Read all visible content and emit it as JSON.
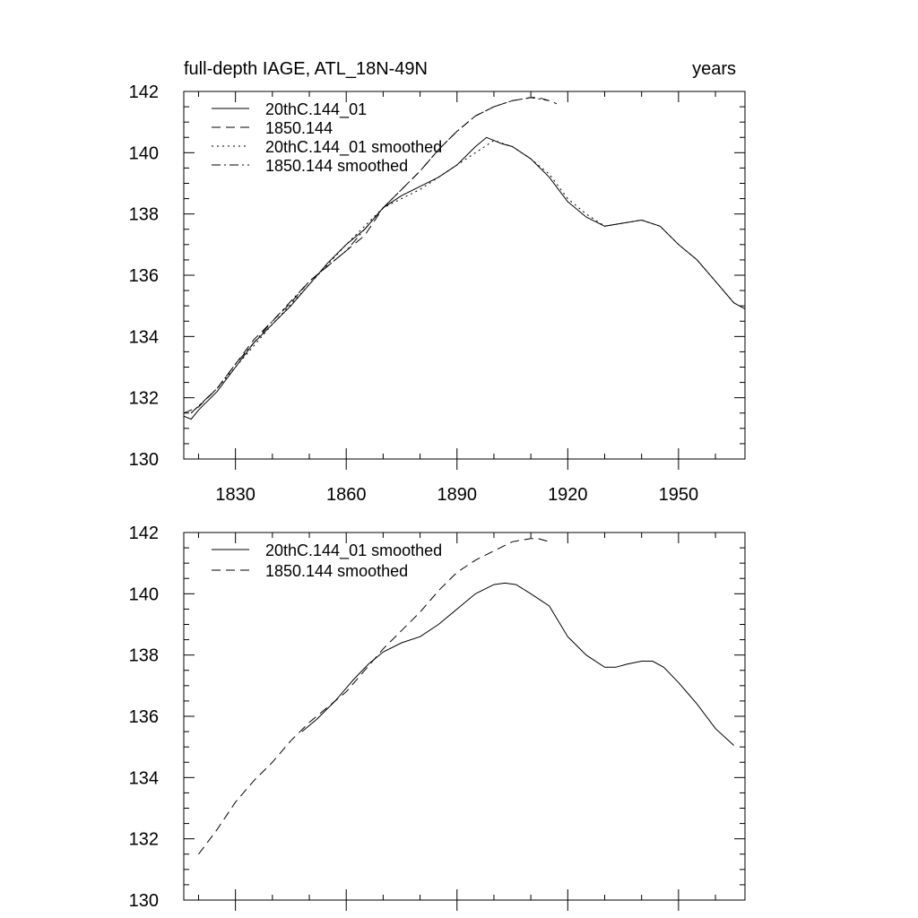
{
  "chart_data": [
    {
      "type": "line",
      "title": "full-depth IAGE, ATL_18N-49N",
      "units": "years",
      "xlim": [
        1816,
        1968
      ],
      "ylim": [
        130,
        142
      ],
      "x_ticks": [
        1830,
        1860,
        1890,
        1920,
        1950
      ],
      "y_ticks": [
        130,
        132,
        134,
        136,
        138,
        140,
        142
      ],
      "series": [
        {
          "name": "20thC.144_01",
          "dash": "solid",
          "x": [
            1816,
            1818,
            1820,
            1825,
            1830,
            1835,
            1840,
            1845,
            1850,
            1855,
            1860,
            1865,
            1870,
            1875,
            1880,
            1885,
            1890,
            1895,
            1898,
            1900,
            1902,
            1905,
            1910,
            1915,
            1920,
            1925,
            1930,
            1935,
            1940,
            1945,
            1950,
            1955,
            1960,
            1965,
            1968
          ],
          "y": [
            131.4,
            131.3,
            131.6,
            132.2,
            133.0,
            133.8,
            134.4,
            135.0,
            135.7,
            136.4,
            137.0,
            137.5,
            138.2,
            138.6,
            138.9,
            139.2,
            139.6,
            140.2,
            140.5,
            140.4,
            140.3,
            140.2,
            139.8,
            139.2,
            138.4,
            137.9,
            137.6,
            137.7,
            137.8,
            137.6,
            137.0,
            136.5,
            135.8,
            135.1,
            134.9
          ]
        },
        {
          "name": "1850.144",
          "dash": "long",
          "x": [
            1816,
            1820,
            1825,
            1830,
            1835,
            1840,
            1845,
            1850,
            1855,
            1860,
            1865,
            1870,
            1875,
            1880,
            1885,
            1890,
            1895,
            1900,
            1905,
            1910,
            1912,
            1915,
            1917
          ],
          "y": [
            131.5,
            131.7,
            132.3,
            133.1,
            133.9,
            134.5,
            135.1,
            135.8,
            136.3,
            136.8,
            137.3,
            138.2,
            138.8,
            139.4,
            140.1,
            140.7,
            141.2,
            141.5,
            141.7,
            141.8,
            141.8,
            141.7,
            141.6
          ]
        },
        {
          "name": "20thC.144_01 smoothed",
          "dash": "dot",
          "x": [
            1818,
            1825,
            1830,
            1840,
            1850,
            1860,
            1870,
            1880,
            1890,
            1895,
            1900,
            1905,
            1910,
            1915,
            1920,
            1925,
            1930,
            1935,
            1940,
            1945,
            1950,
            1955,
            1960,
            1965
          ],
          "y": [
            131.5,
            132.3,
            133.0,
            134.4,
            135.7,
            137.0,
            138.2,
            138.8,
            139.6,
            140.0,
            140.4,
            140.2,
            139.8,
            139.3,
            138.5,
            138.0,
            137.6,
            137.7,
            137.8,
            137.6,
            137.0,
            136.5,
            135.8,
            135.1
          ]
        },
        {
          "name": "1850.144 smoothed",
          "dash": "dashdot",
          "x": [
            1818,
            1825,
            1830,
            1840,
            1850,
            1860,
            1870,
            1880,
            1885,
            1890,
            1895,
            1900,
            1905,
            1910,
            1915
          ],
          "y": [
            131.5,
            132.3,
            133.1,
            134.5,
            135.8,
            136.8,
            138.2,
            139.4,
            140.1,
            140.7,
            141.2,
            141.5,
            141.7,
            141.8,
            141.7
          ]
        }
      ]
    },
    {
      "type": "line",
      "xlim": [
        1816,
        1968
      ],
      "ylim": [
        130,
        142
      ],
      "y_ticks": [
        130,
        132,
        134,
        136,
        138,
        140,
        142
      ],
      "series": [
        {
          "name": "20thC.144_01 smoothed",
          "dash": "solid",
          "x": [
            1848,
            1852,
            1857,
            1862,
            1866,
            1870,
            1875,
            1880,
            1885,
            1890,
            1895,
            1900,
            1903,
            1906,
            1910,
            1915,
            1920,
            1925,
            1930,
            1933,
            1936,
            1940,
            1943,
            1946,
            1950,
            1955,
            1960,
            1965
          ],
          "y": [
            135.5,
            135.9,
            136.5,
            137.2,
            137.7,
            138.1,
            138.4,
            138.6,
            139.0,
            139.5,
            140.0,
            140.3,
            140.35,
            140.3,
            140.0,
            139.6,
            138.6,
            138.0,
            137.6,
            137.6,
            137.7,
            137.8,
            137.8,
            137.6,
            137.1,
            136.4,
            135.6,
            135.05
          ]
        },
        {
          "name": "1850.144 smoothed",
          "dash": "long",
          "x": [
            1820,
            1825,
            1830,
            1835,
            1840,
            1845,
            1850,
            1855,
            1860,
            1865,
            1870,
            1875,
            1880,
            1885,
            1890,
            1895,
            1900,
            1905,
            1910,
            1912,
            1915
          ],
          "y": [
            131.5,
            132.3,
            133.2,
            133.9,
            134.5,
            135.2,
            135.8,
            136.3,
            136.8,
            137.5,
            138.2,
            138.8,
            139.4,
            140.1,
            140.7,
            141.1,
            141.4,
            141.7,
            141.8,
            141.8,
            141.7
          ]
        }
      ]
    }
  ]
}
